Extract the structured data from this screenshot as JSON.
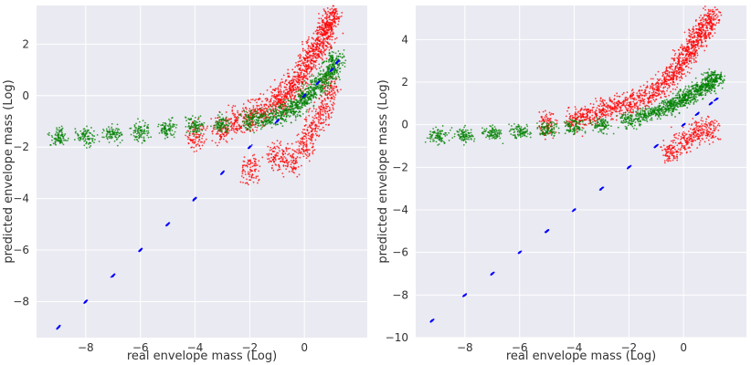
{
  "chart_data": [
    {
      "type": "scatter",
      "title": "",
      "xlabel": "real envelope mass (Log)",
      "ylabel": "predicted envelope mass (Log)",
      "xlim": [
        -9.8,
        2.3
      ],
      "ylim": [
        -9.4,
        3.5
      ],
      "xticks": [
        -8,
        -6,
        -4,
        -2,
        0
      ],
      "yticks": [
        -8,
        -6,
        -4,
        -2,
        0,
        2
      ],
      "grid": true,
      "series": [
        {
          "name": "red",
          "color": "#ff0000",
          "x": [
            1.0,
            0.9,
            0.8,
            0.6,
            0.4,
            0.2,
            0.0,
            -0.2,
            -0.5,
            -0.8,
            -1.0,
            -1.5,
            -2.0,
            -2.5,
            -3.0,
            -4.0,
            0.9,
            0.7,
            0.3,
            0.0,
            -0.5,
            -1.0,
            -2.0
          ],
          "y": [
            3.1,
            2.8,
            2.5,
            2.2,
            1.8,
            1.5,
            1.0,
            0.6,
            0.3,
            0.0,
            -0.3,
            -0.6,
            -0.8,
            -1.0,
            -1.3,
            -1.6,
            0.2,
            -0.6,
            -1.2,
            -2.0,
            -2.5,
            -2.3,
            -2.8
          ]
        },
        {
          "name": "green",
          "color": "#008000",
          "x": [
            1.1,
            1.0,
            0.8,
            0.5,
            0.2,
            0.0,
            -0.3,
            -0.6,
            -1.0,
            -1.5,
            -2.0,
            -3.0,
            -4.0,
            -5.0,
            -6.0,
            -7.0,
            -8.0,
            -9.0
          ],
          "y": [
            1.4,
            1.0,
            0.7,
            0.4,
            0.1,
            -0.1,
            -0.4,
            -0.6,
            -0.8,
            -0.9,
            -1.0,
            -1.1,
            -1.2,
            -1.3,
            -1.4,
            -1.5,
            -1.6,
            -1.6
          ]
        },
        {
          "name": "blue",
          "color": "#0000ff",
          "x": [
            -9.0,
            -8.0,
            -7.0,
            -6.0,
            -5.0,
            -4.0,
            -3.0,
            -2.0,
            -1.0,
            0.0,
            0.5,
            1.0,
            1.2
          ],
          "y": [
            -9.0,
            -8.0,
            -7.0,
            -6.0,
            -5.0,
            -4.0,
            -3.0,
            -2.0,
            -1.0,
            0.0,
            0.5,
            1.0,
            1.3
          ]
        }
      ]
    },
    {
      "type": "scatter",
      "title": "",
      "xlabel": "real envelope mass (Log)",
      "ylabel": "predicted envelope mass (Log)",
      "xlim": [
        -9.8,
        2.3
      ],
      "ylim": [
        -10.0,
        5.6
      ],
      "xticks": [
        -8,
        -6,
        -4,
        -2,
        0
      ],
      "yticks": [
        -10,
        -8,
        -6,
        -4,
        -2,
        0,
        2,
        4
      ],
      "grid": true,
      "series": [
        {
          "name": "red",
          "color": "#ff0000",
          "x": [
            1.0,
            0.8,
            0.6,
            0.4,
            0.2,
            0.0,
            -0.3,
            -0.6,
            -1.0,
            -1.5,
            -2.0,
            -2.5,
            -3.0,
            -3.5,
            -4.0,
            -5.0,
            0.9,
            0.5,
            0.0,
            -0.5
          ],
          "y": [
            5.0,
            4.6,
            4.2,
            3.8,
            3.4,
            3.0,
            2.5,
            2.0,
            1.6,
            1.2,
            1.0,
            0.8,
            0.6,
            0.4,
            0.2,
            0.0,
            -0.2,
            -0.4,
            -0.8,
            -1.3
          ]
        },
        {
          "name": "green",
          "color": "#008000",
          "x": [
            1.1,
            1.0,
            0.8,
            0.5,
            0.2,
            0.0,
            -0.3,
            -0.6,
            -1.0,
            -1.5,
            -2.0,
            -3.0,
            -4.0,
            -5.0,
            -6.0,
            -7.0,
            -8.0,
            -9.0
          ],
          "y": [
            2.2,
            2.0,
            1.8,
            1.6,
            1.4,
            1.2,
            1.0,
            0.8,
            0.6,
            0.4,
            0.2,
            0.0,
            -0.1,
            -0.2,
            -0.3,
            -0.4,
            -0.5,
            -0.5
          ]
        },
        {
          "name": "blue",
          "color": "#0000ff",
          "x": [
            -9.2,
            -8.0,
            -7.0,
            -6.0,
            -5.0,
            -4.0,
            -3.0,
            -2.0,
            -1.0,
            0.0,
            0.5,
            1.0,
            1.2
          ],
          "y": [
            -9.2,
            -8.0,
            -7.0,
            -6.0,
            -5.0,
            -4.0,
            -3.0,
            -2.0,
            -1.0,
            0.0,
            0.5,
            1.0,
            1.2
          ]
        }
      ]
    }
  ]
}
